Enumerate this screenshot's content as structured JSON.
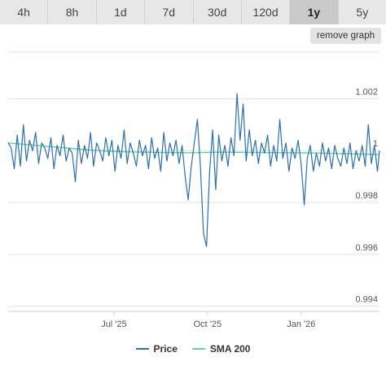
{
  "tabs": [
    "4h",
    "8h",
    "1d",
    "7d",
    "30d",
    "120d",
    "1y",
    "5y"
  ],
  "active_tab": "1y",
  "remove_button": "remove graph",
  "colors": {
    "price": "#2e6fa8",
    "sma": "#5fd39a",
    "grid": "#e3e3e3"
  },
  "chart_data": {
    "type": "line",
    "x_ticks": [
      "Jul '25",
      "Oct '25",
      "Jan '26"
    ],
    "y_ticks": [
      "1.002",
      "1",
      "0.998",
      "0.996",
      "0.994"
    ],
    "y_tick_values": [
      1.002,
      1.0,
      0.998,
      0.996,
      0.994
    ],
    "ylim": [
      0.9938,
      1.0038
    ],
    "x_range": [
      "2025-03-19",
      "2026-03-19"
    ],
    "series": [
      {
        "name": "Price",
        "color": "#2e6fa8",
        "x": [
          "2025-03-19",
          "2025-03-22",
          "2025-03-25",
          "2025-03-28",
          "2025-03-31",
          "2025-04-03",
          "2025-04-06",
          "2025-04-09",
          "2025-04-12",
          "2025-04-15",
          "2025-04-18",
          "2025-04-21",
          "2025-04-24",
          "2025-04-27",
          "2025-04-30",
          "2025-05-03",
          "2025-05-06",
          "2025-05-09",
          "2025-05-12",
          "2025-05-15",
          "2025-05-18",
          "2025-05-21",
          "2025-05-24",
          "2025-05-27",
          "2025-05-30",
          "2025-06-02",
          "2025-06-05",
          "2025-06-08",
          "2025-06-11",
          "2025-06-14",
          "2025-06-17",
          "2025-06-20",
          "2025-06-23",
          "2025-06-26",
          "2025-06-29",
          "2025-07-02",
          "2025-07-05",
          "2025-07-08",
          "2025-07-11",
          "2025-07-14",
          "2025-07-17",
          "2025-07-20",
          "2025-07-23",
          "2025-07-26",
          "2025-07-29",
          "2025-08-01",
          "2025-08-04",
          "2025-08-07",
          "2025-08-10",
          "2025-08-13",
          "2025-08-16",
          "2025-08-19",
          "2025-08-22",
          "2025-08-25",
          "2025-08-28",
          "2025-08-31",
          "2025-09-03",
          "2025-09-06",
          "2025-09-09",
          "2025-09-12",
          "2025-09-15",
          "2025-09-18",
          "2025-09-21",
          "2025-09-24",
          "2025-09-27",
          "2025-09-30",
          "2025-10-03",
          "2025-10-06",
          "2025-10-09",
          "2025-10-12",
          "2025-10-15",
          "2025-10-18",
          "2025-10-21",
          "2025-10-24",
          "2025-10-27",
          "2025-10-30",
          "2025-11-02",
          "2025-11-05",
          "2025-11-08",
          "2025-11-11",
          "2025-11-14",
          "2025-11-17",
          "2025-11-20",
          "2025-11-23",
          "2025-11-26",
          "2025-11-29",
          "2025-12-02",
          "2025-12-05",
          "2025-12-08",
          "2025-12-11",
          "2025-12-14",
          "2025-12-17",
          "2025-12-20",
          "2025-12-23",
          "2025-12-26",
          "2025-12-29",
          "2026-01-01",
          "2026-01-04",
          "2026-01-07",
          "2026-01-10",
          "2026-01-13",
          "2026-01-16",
          "2026-01-19",
          "2026-01-22",
          "2026-01-25",
          "2026-01-28",
          "2026-01-31",
          "2026-02-03",
          "2026-02-06",
          "2026-02-09",
          "2026-02-12",
          "2026-02-15",
          "2026-02-18",
          "2026-02-21",
          "2026-02-24",
          "2026-02-27",
          "2026-03-02",
          "2026-03-05",
          "2026-03-08",
          "2026-03-11",
          "2026-03-14",
          "2026-03-17",
          "2026-03-19"
        ],
        "values": [
          1.0003,
          1.0001,
          0.9993,
          1.0006,
          0.9994,
          1.001,
          0.9996,
          1.0004,
          1.0,
          1.0007,
          0.9995,
          1.0003,
          1.0001,
          0.9997,
          1.0005,
          0.9993,
          1.0002,
          0.9998,
          1.0006,
          0.9996,
          1.0001,
          0.9999,
          0.9988,
          1.0004,
          0.9995,
          1.0002,
          0.9997,
          1.0007,
          0.9994,
          1.0003,
          1.0,
          0.9996,
          1.0005,
          0.9998,
          1.0004,
          0.9992,
          1.0002,
          0.9997,
          1.0008,
          0.9995,
          1.0003,
          0.9999,
          0.9994,
          1.0004,
          0.9998,
          1.0002,
          0.9993,
          1.0005,
          0.9997,
          1.0001,
          0.9992,
          1.0007,
          0.9996,
          1.0003,
          0.9998,
          1.0004,
          0.9995,
          1.0002,
          0.999,
          0.9981,
          0.9994,
          1.0003,
          1.0012,
          0.9994,
          0.9968,
          0.9963,
          0.9992,
          1.0008,
          0.9985,
          1.0006,
          0.9996,
          1.0002,
          0.9994,
          1.0005,
          0.9998,
          1.0022,
          1.0004,
          1.0018,
          0.9996,
          1.0008,
          0.9998,
          1.0004,
          0.9995,
          1.0003,
          0.9999,
          1.0006,
          0.9994,
          1.0002,
          0.9996,
          1.0012,
          0.9997,
          1.0003,
          0.9992,
          1.0001,
          0.9997,
          1.0004,
          0.9995,
          0.9979,
          0.9997,
          1.0002,
          0.9992,
          0.9999,
          0.9994,
          1.0003,
          0.9996,
          1.0001,
          0.9993,
          1.0002,
          0.9997,
          0.9994,
          1.0001,
          0.9995,
          1.0003,
          0.9993,
          1.0,
          0.9996,
          1.0002,
          0.9994,
          1.001,
          0.9995,
          1.0002,
          0.9992,
          1.0
        ]
      },
      {
        "name": "SMA 200",
        "color": "#5fd39a",
        "x": [
          "2025-03-19",
          "2025-04-15",
          "2025-05-15",
          "2025-06-15",
          "2025-07-15",
          "2025-08-15",
          "2025-09-15",
          "2025-10-15",
          "2025-11-15",
          "2025-12-15",
          "2026-01-15",
          "2026-02-15",
          "2026-03-19"
        ],
        "values": [
          1.0003,
          1.0002,
          1.0001,
          1.0,
          0.99995,
          0.99993,
          0.99992,
          0.99994,
          0.99993,
          0.99992,
          0.99991,
          0.99988,
          0.99985
        ]
      }
    ]
  }
}
